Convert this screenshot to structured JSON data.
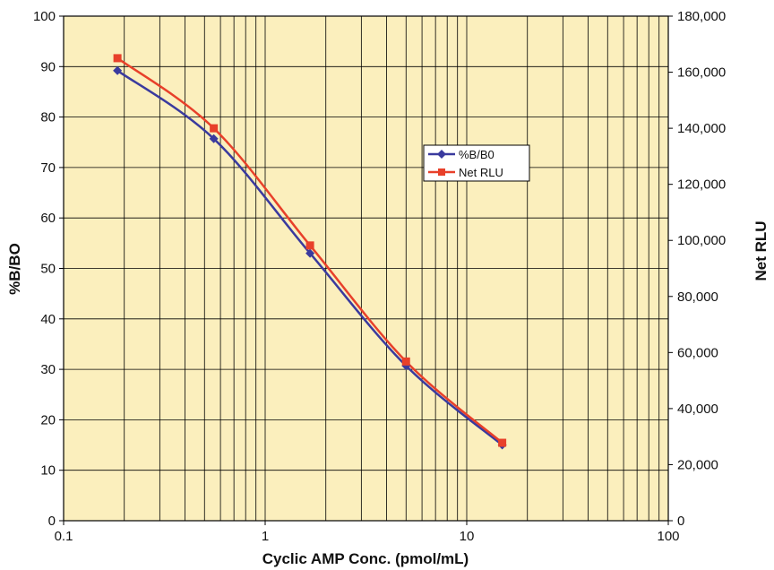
{
  "chart_data": {
    "type": "line",
    "title": "",
    "xlabel": "Cyclic AMP Conc. (pmol/mL)",
    "ylabel": "%B/BO",
    "y2label": "Net RLU",
    "x_scale": "log",
    "xlim": [
      0.1,
      100
    ],
    "ylim": [
      0,
      100
    ],
    "y2lim": [
      0,
      180000
    ],
    "x_ticks": [
      "0.1",
      "1",
      "10",
      "100"
    ],
    "y_ticks": [
      "0",
      "10",
      "20",
      "30",
      "40",
      "50",
      "60",
      "70",
      "80",
      "90",
      "100"
    ],
    "y2_ticks": [
      "0",
      "20,000",
      "40,000",
      "60,000",
      "80,000",
      "100,000",
      "120,000",
      "140,000",
      "160,000",
      "180,000"
    ],
    "grid": true,
    "legend_position": "right-center",
    "background_color": "#fbefbd",
    "series": [
      {
        "name": "%B/B0",
        "axis": "left",
        "color": "#3a3a9e",
        "marker": "diamond",
        "x": [
          0.185,
          0.556,
          1.67,
          5.0,
          15.0
        ],
        "y": [
          89.2,
          75.7,
          53.0,
          30.7,
          15.0
        ]
      },
      {
        "name": "Net RLU",
        "axis": "right",
        "color": "#e8402a",
        "marker": "square",
        "x": [
          0.185,
          0.556,
          1.67,
          5.0,
          15.0
        ],
        "y": [
          165000,
          140000,
          98200,
          56800,
          27800
        ]
      }
    ]
  }
}
